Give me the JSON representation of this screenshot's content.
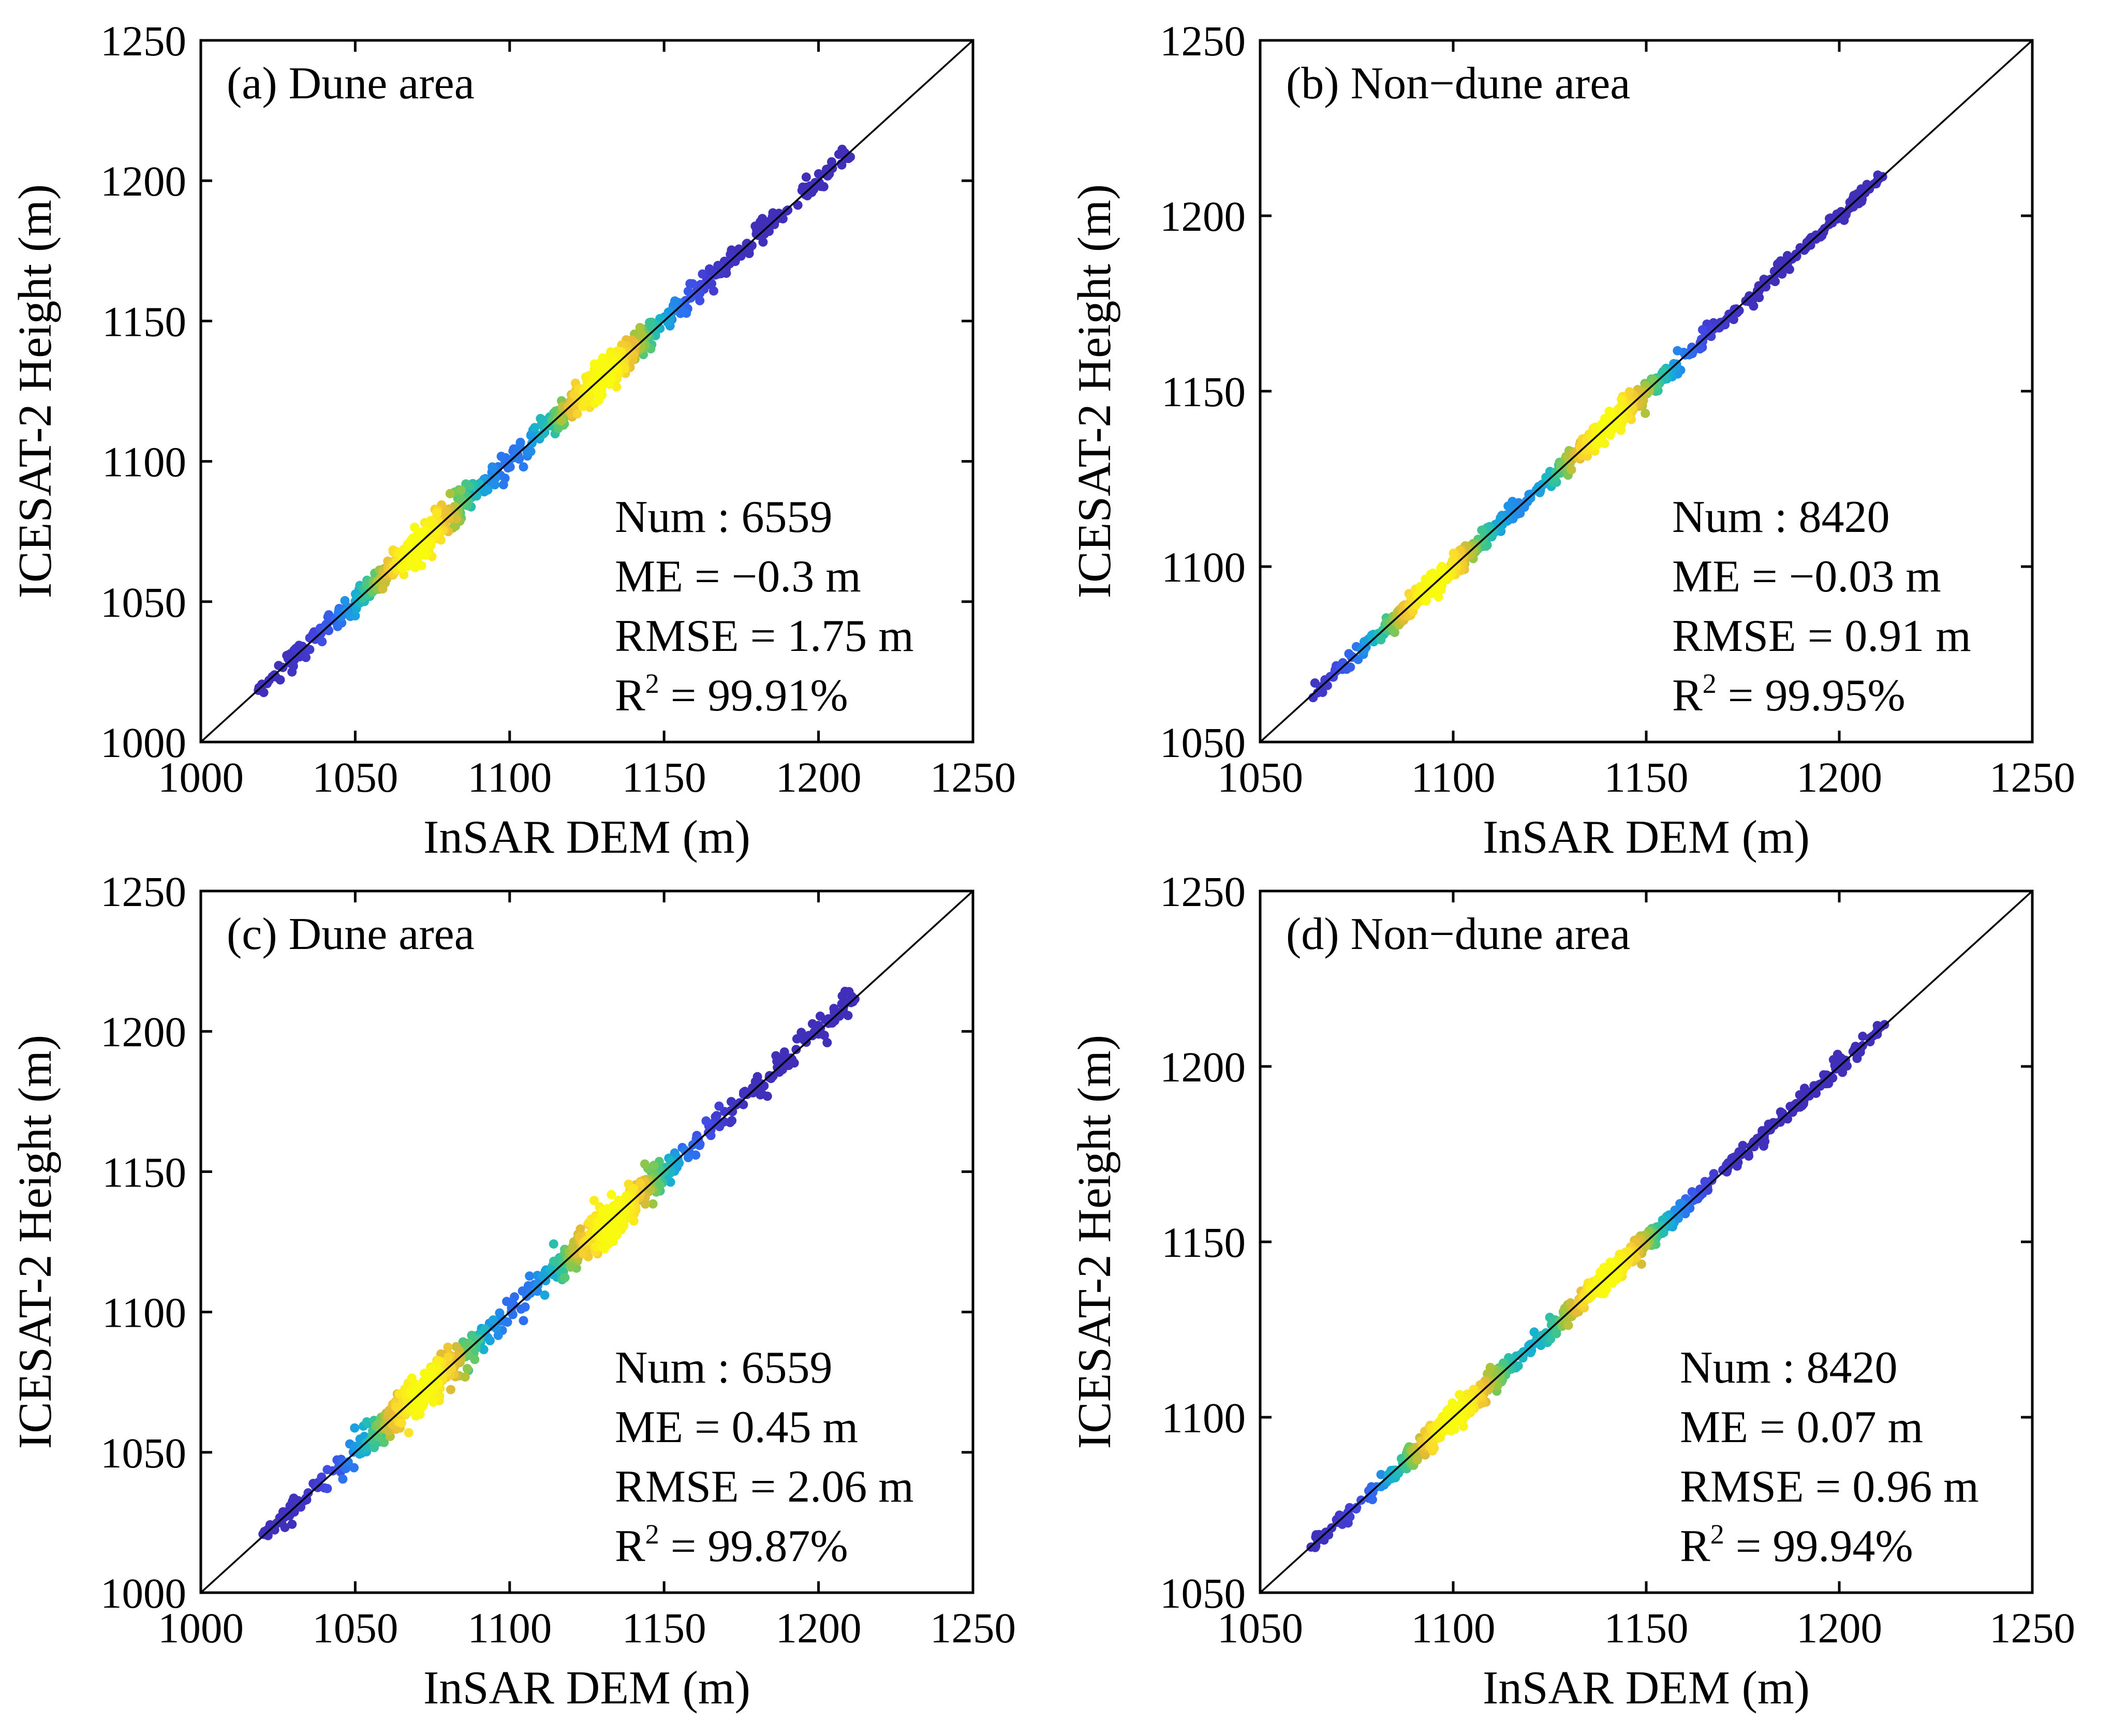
{
  "figure": {
    "panels": [
      {
        "title": "(a) Dune area",
        "xlabel": "InSAR  DEM (m)",
        "ylabel": "ICESAT-2 Height (m)",
        "stats": {
          "num": "Num : 6559",
          "me": "ME = −0.3 m",
          "rmse": "RMSE = 1.75 m",
          "r2_prefix": "R",
          "r2_sup": "2",
          "r2_value": " = 99.91%"
        }
      },
      {
        "title": "(b) Non−dune area",
        "xlabel": "InSAR  DEM (m)",
        "ylabel": "ICESAT-2 Height (m)",
        "stats": {
          "num": "Num : 8420",
          "me": "ME = −0.03 m",
          "rmse": "RMSE = 0.91 m",
          "r2_prefix": "R",
          "r2_sup": "2",
          "r2_value": " = 99.95%"
        }
      },
      {
        "title": "(c) Dune area",
        "xlabel": "InSAR  DEM (m)",
        "ylabel": "ICESAT-2 Height (m)",
        "stats": {
          "num": "Num : 6559",
          "me": "ME = 0.45 m",
          "rmse": "RMSE = 2.06 m",
          "r2_prefix": "R",
          "r2_sup": "2",
          "r2_value": " = 99.87%"
        }
      },
      {
        "title": "(d) Non−dune area",
        "xlabel": "InSAR  DEM (m)",
        "ylabel": "ICESAT-2 Height (m)",
        "stats": {
          "num": "Num : 8420",
          "me": "ME = 0.07 m",
          "rmse": "RMSE = 0.96 m",
          "r2_prefix": "R",
          "r2_sup": "2",
          "r2_value": " = 99.94%"
        }
      }
    ]
  },
  "colors": {
    "density_scale": [
      "#3e26a8",
      "#4346e0",
      "#2e6ff0",
      "#1f94e8",
      "#17b0d2",
      "#2bc0a8",
      "#5cc96e",
      "#a8c53a",
      "#e8bb36",
      "#fbdd2a",
      "#f9fb0e"
    ],
    "reference_line": "#000000",
    "frame": "#000000"
  },
  "chart_data": [
    {
      "type": "scatter",
      "title": "(a) Dune area",
      "xlabel": "InSAR  DEM (m)",
      "ylabel": "ICESAT-2 Height (m)",
      "xlim": [
        1000,
        1250
      ],
      "ylim": [
        1000,
        1250
      ],
      "xticks": [
        1000,
        1050,
        1100,
        1150,
        1200,
        1250
      ],
      "yticks": [
        1000,
        1050,
        1100,
        1150,
        1200,
        1250
      ],
      "reference_line": "1:1",
      "color_by": "point density",
      "point_range": [
        1018,
        1210
      ],
      "spread_m": 1.75,
      "dense_centers": [
        1070,
        1130
      ],
      "n_points": 6559,
      "me_m": -0.3,
      "rmse_m": 1.75,
      "r2_percent": 99.91,
      "stats_location": "bottom-right"
    },
    {
      "type": "scatter",
      "title": "(b) Non−dune area",
      "xlabel": "InSAR  DEM (m)",
      "ylabel": "ICESAT-2 Height (m)",
      "xlim": [
        1050,
        1250
      ],
      "ylim": [
        1050,
        1250
      ],
      "xticks": [
        1050,
        1100,
        1150,
        1200,
        1250
      ],
      "yticks": [
        1050,
        1100,
        1150,
        1200,
        1250
      ],
      "reference_line": "1:1",
      "color_by": "point density",
      "point_range": [
        1063,
        1212
      ],
      "spread_m": 0.91,
      "dense_centers": [
        1095,
        1140
      ],
      "n_points": 8420,
      "me_m": -0.03,
      "rmse_m": 0.91,
      "r2_percent": 99.95,
      "stats_location": "bottom-right"
    },
    {
      "type": "scatter",
      "title": "(c) Dune area",
      "xlabel": "InSAR  DEM (m)",
      "ylabel": "ICESAT-2 Height (m)",
      "xlim": [
        1000,
        1250
      ],
      "ylim": [
        1000,
        1250
      ],
      "xticks": [
        1000,
        1050,
        1100,
        1150,
        1200,
        1250
      ],
      "yticks": [
        1000,
        1050,
        1100,
        1150,
        1200,
        1250
      ],
      "reference_line": "1:1",
      "color_by": "point density",
      "point_range": [
        1020,
        1212
      ],
      "spread_m": 2.06,
      "dense_centers": [
        1072,
        1133
      ],
      "n_points": 6559,
      "me_m": 0.45,
      "rmse_m": 2.06,
      "r2_percent": 99.87,
      "stats_location": "bottom-right"
    },
    {
      "type": "scatter",
      "title": "(d) Non−dune area",
      "xlabel": "InSAR  DEM (m)",
      "ylabel": "ICESAT-2 Height (m)",
      "xlim": [
        1050,
        1250
      ],
      "ylim": [
        1050,
        1250
      ],
      "xticks": [
        1050,
        1100,
        1150,
        1200,
        1250
      ],
      "yticks": [
        1050,
        1100,
        1150,
        1200,
        1250
      ],
      "reference_line": "1:1",
      "color_by": "point density",
      "point_range": [
        1063,
        1212
      ],
      "spread_m": 0.96,
      "dense_centers": [
        1100,
        1140
      ],
      "n_points": 8420,
      "me_m": 0.07,
      "rmse_m": 0.96,
      "r2_percent": 99.94,
      "stats_location": "bottom-right"
    }
  ]
}
